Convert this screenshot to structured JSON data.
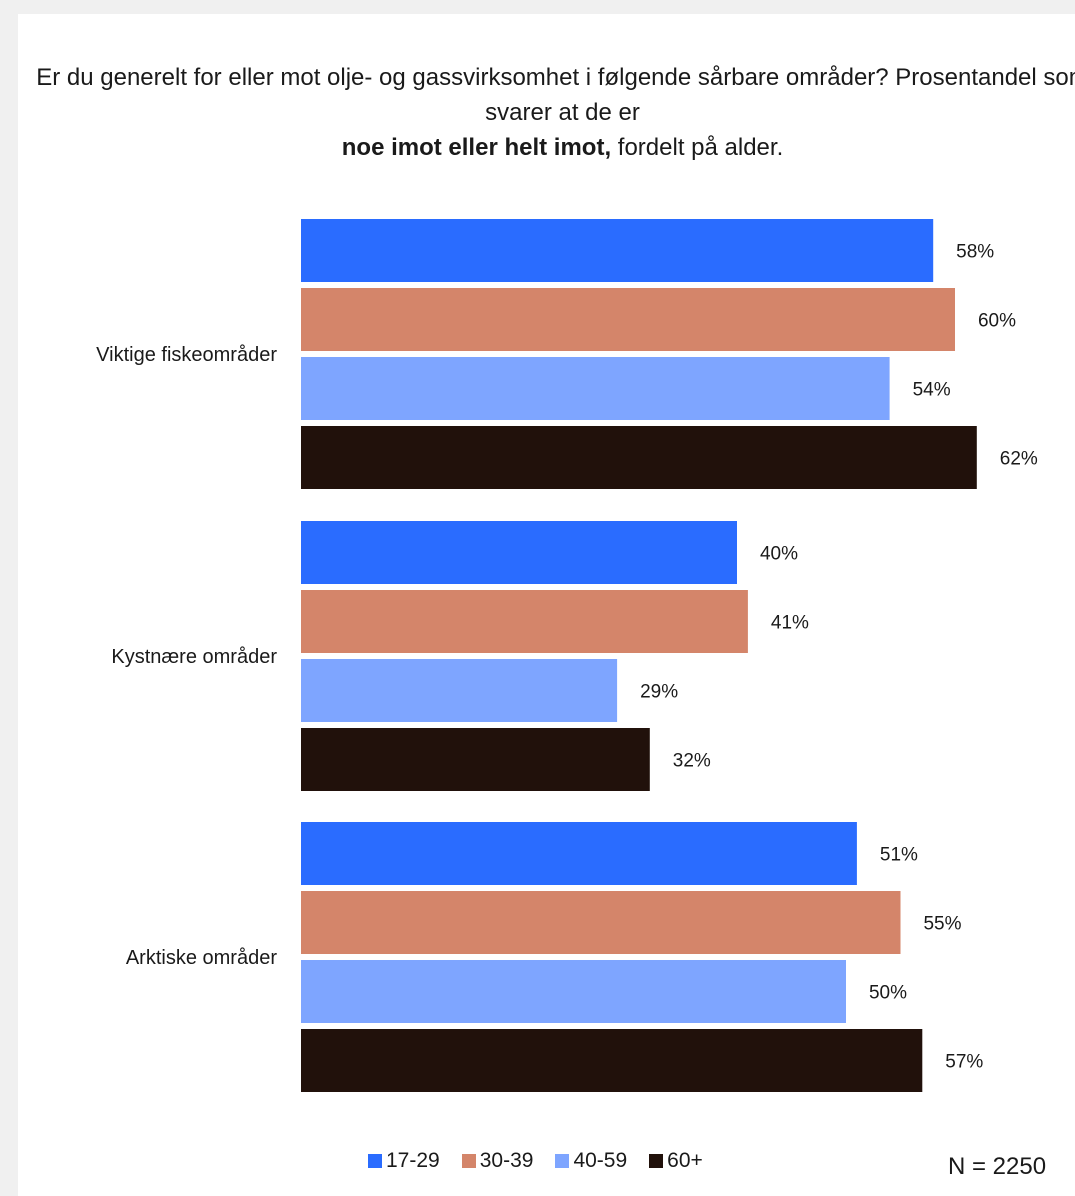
{
  "chart_data": {
    "type": "bar",
    "orientation": "horizontal",
    "title_parts": [
      {
        "text": "Er du generelt for eller mot olje- og gassvirksomhet i følgende sårbare områder? Prosentandel som svarer at de er ",
        "bold": false
      },
      {
        "text": "noe imot eller helt imot,",
        "bold": true
      },
      {
        "text": " fordelt på alder.",
        "bold": false
      }
    ],
    "categories": [
      "Viktige fiskeområder",
      "Kystnære områder",
      "Arktiske områder"
    ],
    "series": [
      {
        "name": "17-29",
        "color": "#2a6cff",
        "values": [
          58,
          40,
          51
        ]
      },
      {
        "name": "30-39",
        "color": "#d4856a",
        "values": [
          60,
          41,
          55
        ]
      },
      {
        "name": "40-59",
        "color": "#7ea5ff",
        "values": [
          54,
          29,
          50
        ]
      },
      {
        "name": "60+",
        "color": "#21110b",
        "values": [
          62,
          32,
          57
        ]
      }
    ],
    "value_suffix": "%",
    "xlim": [
      0,
      100
    ],
    "grid": false,
    "legend_position": "bottom",
    "annotations": [
      "N = 2250"
    ]
  }
}
